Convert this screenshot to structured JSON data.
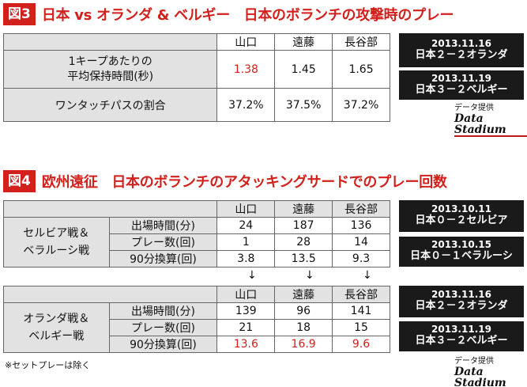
{
  "fig3": {
    "badge": "図3",
    "title": "日本 vs オランダ & ベルギー　日本のボランチの攻撃時のプレー",
    "headers": [
      "山口",
      "遠藤",
      "長谷部"
    ],
    "rows": [
      {
        "label": "1キープあたりの\n平均保持時間(秒)",
        "values": [
          "1.38",
          "1.45",
          "1.65"
        ]
      },
      {
        "label": "ワンタッチパスの割合",
        "values": [
          "37.2%",
          "37.5%",
          "37.2%"
        ]
      }
    ],
    "matches": [
      {
        "date": "2013.11.16",
        "result": "日本２－２オランダ"
      },
      {
        "date": "2013.11.19",
        "result": "日本３－２ベルギー"
      }
    ],
    "credit_label": "データ提供",
    "credit_logo": "Data Stadium"
  },
  "fig4": {
    "badge": "図4",
    "title": "欧州遠征　日本のボランチのアタッキングサードでのプレー回数",
    "headers": [
      "山口",
      "遠藤",
      "長谷部"
    ],
    "groups": [
      {
        "name": "セルビア戦＆\nベラルーシ戦",
        "rows": [
          {
            "label": "出場時間(分)",
            "values": [
              "24",
              "187",
              "136"
            ]
          },
          {
            "label": "プレー数(回)",
            "values": [
              "1",
              "28",
              "14"
            ]
          },
          {
            "label": "90分換算(回)",
            "values": [
              "3.8",
              "13.5",
              "9.3"
            ]
          }
        ]
      },
      {
        "name": "オランダ戦＆\nベルギー戦",
        "rows": [
          {
            "label": "出場時間(分)",
            "values": [
              "139",
              "96",
              "141"
            ]
          },
          {
            "label": "プレー数(回)",
            "values": [
              "21",
              "18",
              "15"
            ]
          },
          {
            "label": "90分換算(回)",
            "values": [
              "13.6",
              "16.9",
              "9.6"
            ]
          }
        ]
      }
    ],
    "arrow": "↓",
    "matches": [
      {
        "date": "2013.10.11",
        "result": "日本０－２セルビア"
      },
      {
        "date": "2013.10.15",
        "result": "日本０－１ベラルーシ"
      },
      {
        "date": "2013.11.16",
        "result": "日本２－２オランダ"
      },
      {
        "date": "2013.11.19",
        "result": "日本３－２ベルギー"
      }
    ],
    "note": "※セットプレーは除く",
    "credit_label": "データ提供",
    "credit_logo": "Data Stadium"
  },
  "colors": {
    "accent": "#d2211c",
    "header_bg": "#e2e2e2",
    "side_bg": "#1a1a1a"
  }
}
